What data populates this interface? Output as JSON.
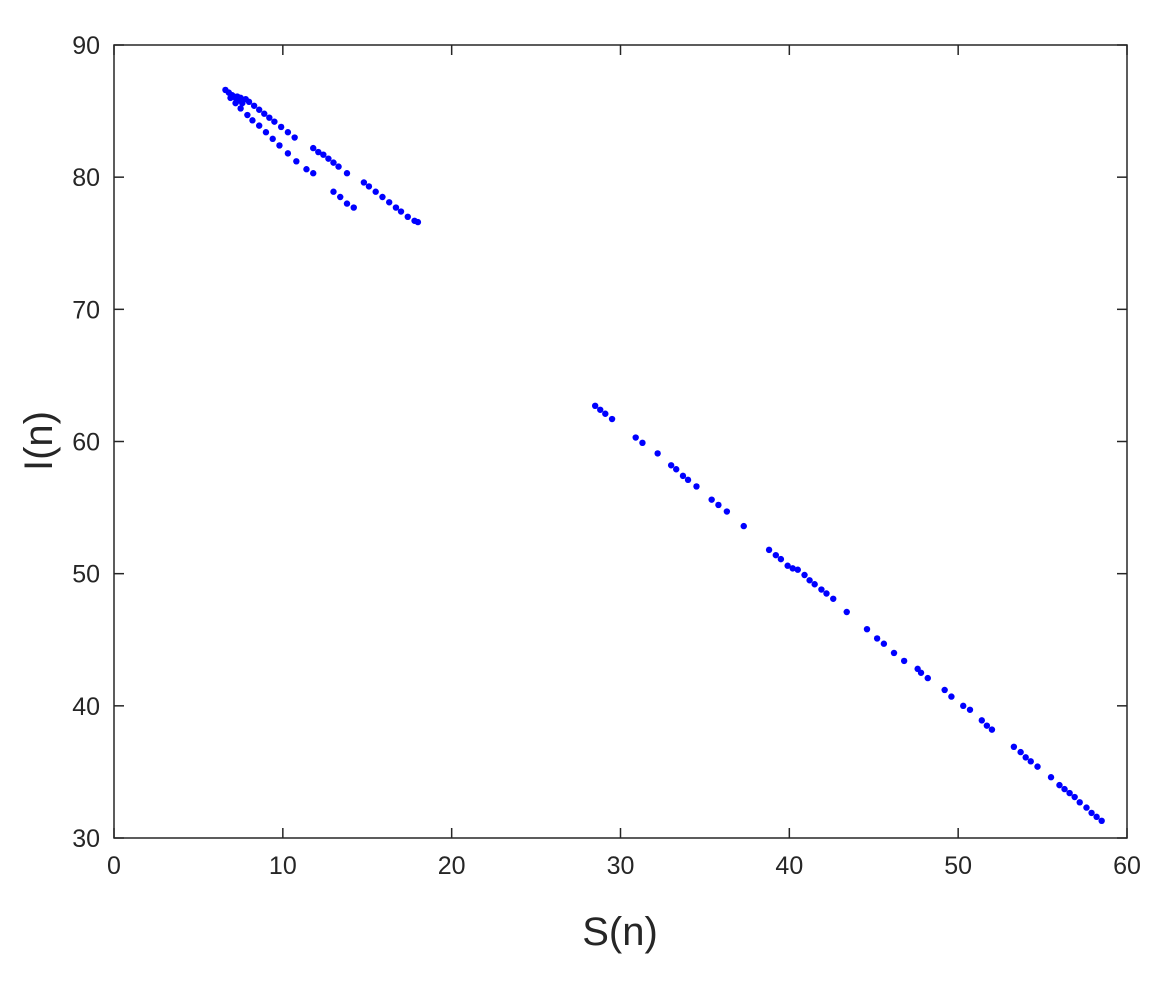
{
  "chart_data": {
    "type": "scatter",
    "title": "",
    "xlabel": "S(n)",
    "ylabel": "I(n)",
    "xlim": [
      0,
      60
    ],
    "ylim": [
      30,
      90
    ],
    "xticks": [
      0,
      10,
      20,
      30,
      40,
      50,
      60
    ],
    "yticks": [
      30,
      40,
      50,
      60,
      70,
      80,
      90
    ],
    "grid": false,
    "box": true,
    "marker_color": "#0000ff",
    "series": [
      {
        "points": [
          [
            6.6,
            86.6
          ],
          [
            6.8,
            86.4
          ],
          [
            7.0,
            86.2
          ],
          [
            7.2,
            86.0
          ],
          [
            7.4,
            85.8
          ],
          [
            7.6,
            85.6
          ],
          [
            7.1,
            86.1
          ],
          [
            7.3,
            86.1
          ],
          [
            7.5,
            86.0
          ],
          [
            7.8,
            85.9
          ],
          [
            8.0,
            85.7
          ],
          [
            8.3,
            85.4
          ],
          [
            8.6,
            85.1
          ],
          [
            8.9,
            84.8
          ],
          [
            9.2,
            84.5
          ],
          [
            9.5,
            84.2
          ],
          [
            9.9,
            83.8
          ],
          [
            10.3,
            83.4
          ],
          [
            10.7,
            83.0
          ],
          [
            11.8,
            82.2
          ],
          [
            12.1,
            81.9
          ],
          [
            12.4,
            81.7
          ],
          [
            12.7,
            81.4
          ],
          [
            13.0,
            81.1
          ],
          [
            13.3,
            80.8
          ],
          [
            13.8,
            80.3
          ],
          [
            14.8,
            79.6
          ],
          [
            15.1,
            79.3
          ],
          [
            15.5,
            78.9
          ],
          [
            15.9,
            78.5
          ],
          [
            16.3,
            78.1
          ],
          [
            16.7,
            77.7
          ],
          [
            17.0,
            77.4
          ],
          [
            17.4,
            77.0
          ],
          [
            17.8,
            76.7
          ],
          [
            18.0,
            76.6
          ],
          [
            6.9,
            86.0
          ],
          [
            7.2,
            85.6
          ],
          [
            7.5,
            85.2
          ],
          [
            7.9,
            84.7
          ],
          [
            8.2,
            84.3
          ],
          [
            8.6,
            83.9
          ],
          [
            9.0,
            83.4
          ],
          [
            9.4,
            82.9
          ],
          [
            9.8,
            82.4
          ],
          [
            10.3,
            81.8
          ],
          [
            10.8,
            81.2
          ],
          [
            11.4,
            80.6
          ],
          [
            11.8,
            80.3
          ],
          [
            13.0,
            78.9
          ],
          [
            13.4,
            78.5
          ],
          [
            13.8,
            78.0
          ],
          [
            14.2,
            77.7
          ],
          [
            28.5,
            62.7
          ],
          [
            28.8,
            62.4
          ],
          [
            29.1,
            62.1
          ],
          [
            29.5,
            61.7
          ],
          [
            30.9,
            60.3
          ],
          [
            31.3,
            59.9
          ],
          [
            32.2,
            59.1
          ],
          [
            33.0,
            58.2
          ],
          [
            33.3,
            57.9
          ],
          [
            33.7,
            57.4
          ],
          [
            34.0,
            57.1
          ],
          [
            34.5,
            56.6
          ],
          [
            35.4,
            55.6
          ],
          [
            35.8,
            55.2
          ],
          [
            36.3,
            54.7
          ],
          [
            37.3,
            53.6
          ],
          [
            38.8,
            51.8
          ],
          [
            39.2,
            51.4
          ],
          [
            39.5,
            51.1
          ],
          [
            39.9,
            50.6
          ],
          [
            40.2,
            50.4
          ],
          [
            40.5,
            50.3
          ],
          [
            40.9,
            49.9
          ],
          [
            41.2,
            49.5
          ],
          [
            41.5,
            49.2
          ],
          [
            41.9,
            48.8
          ],
          [
            42.2,
            48.5
          ],
          [
            42.6,
            48.1
          ],
          [
            43.4,
            47.1
          ],
          [
            44.6,
            45.8
          ],
          [
            45.2,
            45.1
          ],
          [
            45.6,
            44.7
          ],
          [
            46.2,
            44.0
          ],
          [
            46.8,
            43.4
          ],
          [
            47.6,
            42.8
          ],
          [
            47.8,
            42.5
          ],
          [
            48.2,
            42.1
          ],
          [
            49.2,
            41.2
          ],
          [
            49.6,
            40.7
          ],
          [
            50.3,
            40.0
          ],
          [
            50.7,
            39.7
          ],
          [
            51.4,
            38.9
          ],
          [
            51.7,
            38.5
          ],
          [
            52.0,
            38.2
          ],
          [
            53.3,
            36.9
          ],
          [
            53.7,
            36.5
          ],
          [
            54.0,
            36.1
          ],
          [
            54.3,
            35.8
          ],
          [
            54.7,
            35.4
          ],
          [
            55.5,
            34.6
          ],
          [
            56.0,
            34.0
          ],
          [
            56.3,
            33.7
          ],
          [
            56.6,
            33.4
          ],
          [
            56.9,
            33.1
          ],
          [
            57.2,
            32.7
          ],
          [
            57.6,
            32.3
          ],
          [
            57.9,
            31.9
          ],
          [
            58.2,
            31.6
          ],
          [
            58.5,
            31.3
          ]
        ]
      }
    ]
  }
}
